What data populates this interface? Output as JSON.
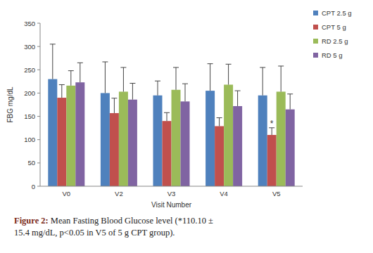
{
  "chart_data": {
    "type": "bar",
    "x_label": "Visit Number",
    "y_label": "FBG mg/dL",
    "categories": [
      "V0",
      "V2",
      "V3",
      "V4",
      "V5"
    ],
    "series": [
      {
        "name": "CPT 2.5 g",
        "color": "#4f81bd",
        "values": [
          230,
          200,
          195,
          205,
          195
        ],
        "errors": [
          75,
          67,
          31,
          58,
          60
        ]
      },
      {
        "name": "CPT 5 g",
        "color": "#c0504d",
        "values": [
          190,
          157,
          140,
          129,
          110.1
        ],
        "errors": [
          28,
          32,
          18,
          18,
          15.4
        ]
      },
      {
        "name": "RD 2.5 g",
        "color": "#9bbb59",
        "values": [
          216,
          203,
          207,
          218,
          203
        ],
        "errors": [
          32,
          52,
          48,
          44,
          55
        ]
      },
      {
        "name": "RD 5 g",
        "color": "#8064a2",
        "values": [
          223,
          186,
          182,
          172,
          165
        ],
        "errors": [
          42,
          35,
          38,
          33,
          33
        ]
      }
    ],
    "ylim": [
      0,
      350
    ],
    "yticks": [
      0,
      50,
      100,
      150,
      200,
      250,
      300,
      350
    ],
    "grid": false,
    "legend": "right",
    "annotations": [
      {
        "text": "*",
        "category": "V5",
        "series": "CPT 5 g"
      }
    ],
    "caption_label": "Figure 2:",
    "caption": "Mean Fasting Blood Glucose level (*110.10 ± 15.4 mg/dL, p<0.05 in V5 of 5 g CPT group)."
  }
}
